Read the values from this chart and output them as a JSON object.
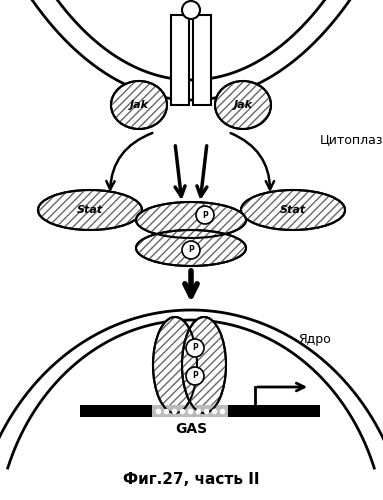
{
  "title": "Фиг.27, часть II",
  "cytoplasm_label": "Цитоплазма",
  "nucleus_label": "Ядро",
  "gas_label": "GAS",
  "jak_label": "Jak",
  "stat_label": "Stat",
  "p_label": "P",
  "bg_color": "#ffffff",
  "line_color": "#000000",
  "fig_width": 3.83,
  "fig_height": 5.0
}
